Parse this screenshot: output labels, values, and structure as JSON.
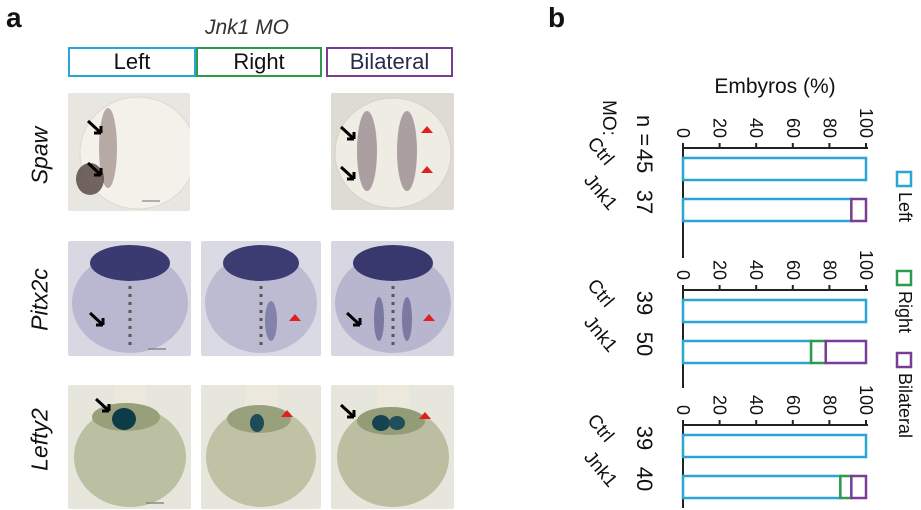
{
  "panel_a": {
    "letter": "a",
    "title": "Jnk1 MO",
    "columns": [
      {
        "label": "Left",
        "color": "#2aa6d6"
      },
      {
        "label": "Right",
        "color": "#2e9a4e"
      },
      {
        "label": "Bilateral",
        "color": "#7a3d96"
      }
    ],
    "rows": [
      "Spaw",
      "Pitx2c",
      "Lefty2"
    ]
  },
  "panel_b": {
    "letter": "b",
    "axis_title": "Embyros (%)",
    "n_label": "n =",
    "mo_label": "MO:",
    "ticks": [
      "0",
      "20",
      "40",
      "60",
      "80",
      "100"
    ],
    "legend": [
      {
        "label": "Left",
        "color": "#2aa6d6"
      },
      {
        "label": "Right",
        "color": "#2e9a4e"
      },
      {
        "label": "Bilateral",
        "color": "#7a3d96"
      }
    ]
  },
  "chart_data": {
    "type": "bar",
    "orientation": "stacked-horizontal",
    "xlim": [
      0,
      100
    ],
    "xlabel": "Embyros (%)",
    "series": [
      {
        "name": "Left",
        "color": "#2aa6d6"
      },
      {
        "name": "Right",
        "color": "#2e9a4e"
      },
      {
        "name": "Bilateral",
        "color": "#7a3d96"
      }
    ],
    "groups": [
      {
        "bars": [
          {
            "label": "Ctrl",
            "n": "45",
            "values": [
              100,
              0,
              0
            ]
          },
          {
            "label": "Jnk1",
            "n": "37",
            "values": [
              92,
              0,
              8
            ]
          }
        ]
      },
      {
        "bars": [
          {
            "label": "Ctrl",
            "n": "39",
            "values": [
              100,
              0,
              0
            ]
          },
          {
            "label": "Jnk1",
            "n": "50",
            "values": [
              70,
              8,
              22
            ]
          }
        ]
      },
      {
        "bars": [
          {
            "label": "Ctrl",
            "n": "39",
            "values": [
              100,
              0,
              0
            ]
          },
          {
            "label": "Jnk1",
            "n": "40",
            "values": [
              86,
              6,
              8
            ]
          }
        ]
      }
    ]
  }
}
